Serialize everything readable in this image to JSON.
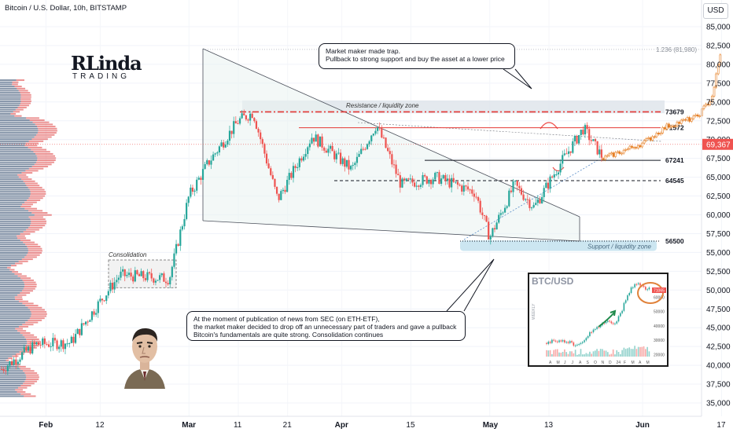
{
  "header": {
    "title": "Bitcoin / U.S. Dollar, 10h, BITSTAMP",
    "currency_button": "USD"
  },
  "colors": {
    "up": "#26a69a",
    "down": "#ef5350",
    "level": "#e53935",
    "zone": "#b7dceb",
    "accent": "#e67e22"
  },
  "chart_data": {
    "type": "candlestick",
    "symbol": "Bitcoin / U.S. Dollar",
    "interval": "10h",
    "exchange": "BITSTAMP",
    "ylim": [
      34000,
      86000
    ],
    "price_ticks": [
      "85,000",
      "82,500",
      "80,000",
      "77,500",
      "75,000",
      "72,500",
      "70,000",
      "67,500",
      "65,000",
      "62,500",
      "60,000",
      "57,500",
      "55,000",
      "52,500",
      "50,000",
      "47,500",
      "45,000",
      "42,500",
      "40,000",
      "37,500",
      "35,000"
    ],
    "time_ticks": [
      "Feb",
      "12",
      "Mar",
      "11",
      "21",
      "Apr",
      "15",
      "May",
      "13",
      "Jun",
      "17"
    ],
    "current_price": "69,367",
    "target_label": "1.236 (81,980)",
    "target_price": 81980,
    "levels": [
      {
        "label": "73679",
        "value": 73679,
        "style": "dash-dot"
      },
      {
        "label": "71572",
        "value": 71572,
        "style": "solid"
      },
      {
        "label": "67241",
        "value": 67241,
        "style": "solid"
      },
      {
        "label": "64545",
        "value": 64545,
        "style": "dashed"
      },
      {
        "label": "56500",
        "value": 56500,
        "style": "dotted"
      }
    ],
    "zones": [
      {
        "label": "Resistance / liquidity zone",
        "from": 73500,
        "to": 75200
      },
      {
        "label": "Support / liquidity zone",
        "from": 55200,
        "to": 56600
      },
      {
        "label": "Consolidation",
        "from": 50300,
        "to": 54000
      }
    ],
    "series": [
      {
        "date": "Jan 23",
        "value": 39500
      },
      {
        "date": "Jan 30",
        "value": 42800
      },
      {
        "date": "Feb 6",
        "value": 43000
      },
      {
        "date": "Feb 12",
        "value": 48500
      },
      {
        "date": "Feb 16",
        "value": 52000
      },
      {
        "date": "Feb 26",
        "value": 51500
      },
      {
        "date": "Mar 1",
        "value": 62500
      },
      {
        "date": "Mar 5",
        "value": 67000
      },
      {
        "date": "Mar 11",
        "value": 72500
      },
      {
        "date": "Mar 14",
        "value": 73600
      },
      {
        "date": "Mar 19",
        "value": 62000
      },
      {
        "date": "Mar 26",
        "value": 70500
      },
      {
        "date": "Apr 3",
        "value": 66000
      },
      {
        "date": "Apr 8",
        "value": 72000
      },
      {
        "date": "Apr 13",
        "value": 64000
      },
      {
        "date": "Apr 20",
        "value": 65000
      },
      {
        "date": "Apr 28",
        "value": 63000
      },
      {
        "date": "May 1",
        "value": 57000
      },
      {
        "date": "May 6",
        "value": 64000
      },
      {
        "date": "May 10",
        "value": 61000
      },
      {
        "date": "May 15",
        "value": 66500
      },
      {
        "date": "May 20",
        "value": 71500
      },
      {
        "date": "May 24",
        "value": 67500
      }
    ],
    "projection": [
      {
        "date": "May 24",
        "value": 67500
      },
      {
        "date": "Jun 1",
        "value": 69500
      },
      {
        "date": "Jun 6",
        "value": 71800
      },
      {
        "date": "Jun 12",
        "value": 73000
      },
      {
        "date": "Jun 15",
        "value": 75500
      },
      {
        "date": "Jun 17",
        "value": 81980
      }
    ]
  },
  "annotations": {
    "top_callout": [
      "Market maker made trap.",
      "Pullback to strong support and buy the asset at a lower price"
    ],
    "bottom_callout": [
      "At the moment of publication of news from SEC (on ETH-ETF),",
      "the market maker decided to drop off an unnecessary part of traders and gave a pullback",
      "Bitcoin's fundamentals are quite strong. Consolidation continues"
    ]
  },
  "logo": {
    "big": "RLinda",
    "small": "TRADING"
  },
  "inset": {
    "title": "BTC/USD",
    "axis_label": "WEEKLY",
    "price_ticks": [
      "60000",
      "50000",
      "40000",
      "30000",
      "20000"
    ],
    "price_label": "71065",
    "month_ticks": [
      "A",
      "M",
      "J",
      "J",
      "A",
      "S",
      "O",
      "N",
      "D",
      "24",
      "F",
      "M",
      "A",
      "M"
    ]
  }
}
